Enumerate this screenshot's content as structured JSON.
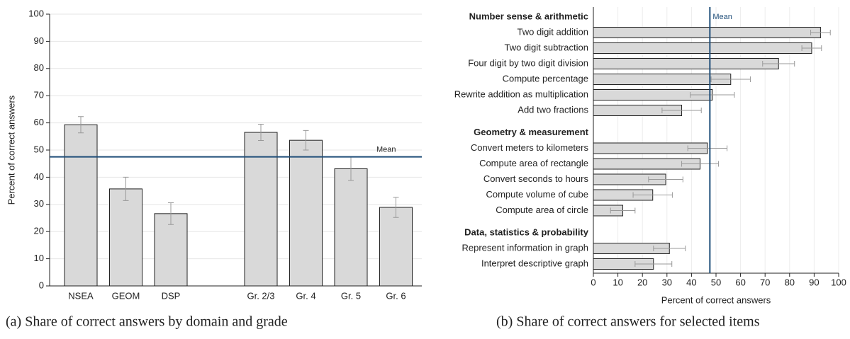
{
  "chart_data": [
    {
      "type": "bar",
      "caption": "(a) Share of correct answers by domain and grade",
      "ylabel": "Percent of correct answers",
      "categories": [
        "NSEA",
        "GEOM",
        "DSP",
        null,
        "Gr. 2/3",
        "Gr. 4",
        "Gr. 5",
        "Gr. 6"
      ],
      "values": [
        59.3,
        35.7,
        26.6,
        null,
        56.5,
        53.6,
        43.1,
        28.9
      ],
      "errors": [
        3,
        4.3,
        4,
        null,
        3,
        3.6,
        4.3,
        3.7
      ],
      "color": "#d9d9d9",
      "mean": 47.5,
      "mean_label": "Mean",
      "mean_color": "#1f4e79",
      "ylim": [
        0,
        100
      ],
      "yticks": [
        0,
        10,
        20,
        30,
        40,
        50,
        60,
        70,
        80,
        90,
        100
      ],
      "grid": true
    },
    {
      "type": "hbar",
      "caption": "(b) Share of correct answers for selected items",
      "xlabel": "Percent of correct answers",
      "groups": [
        {
          "name": "Number sense & arithmetic",
          "categories": [
            "Two digit addition",
            "Two digit subtraction",
            "Four digit by two digit division",
            "Compute percentage",
            "Rewrite addition as multiplication",
            "Add two fractions"
          ],
          "values": [
            92.6,
            89,
            75.5,
            56,
            48.5,
            36
          ],
          "errors": [
            4,
            4,
            6.5,
            8,
            9,
            8
          ]
        },
        {
          "name": "Geometry & measurement",
          "categories": [
            "Convert meters to kilometers",
            "Compute area of rectangle",
            "Convert seconds to hours",
            "Compute volume of cube",
            "Compute area of circle"
          ],
          "values": [
            46.5,
            43.5,
            29.5,
            24.2,
            12
          ],
          "errors": [
            8,
            7.5,
            7,
            8,
            5
          ]
        },
        {
          "name": "Data, statistics & probability",
          "categories": [
            "Represent information in graph",
            "Interpret descriptive graph"
          ],
          "values": [
            31,
            24.5
          ],
          "errors": [
            6.5,
            7.5
          ]
        }
      ],
      "color": "#d9d9d9",
      "mean": 47.5,
      "mean_label": "Mean",
      "mean_color": "#1f4e79",
      "xlim": [
        0,
        100
      ],
      "xticks": [
        0,
        10,
        20,
        30,
        40,
        50,
        60,
        70,
        80,
        90,
        100
      ],
      "grid": true
    }
  ]
}
